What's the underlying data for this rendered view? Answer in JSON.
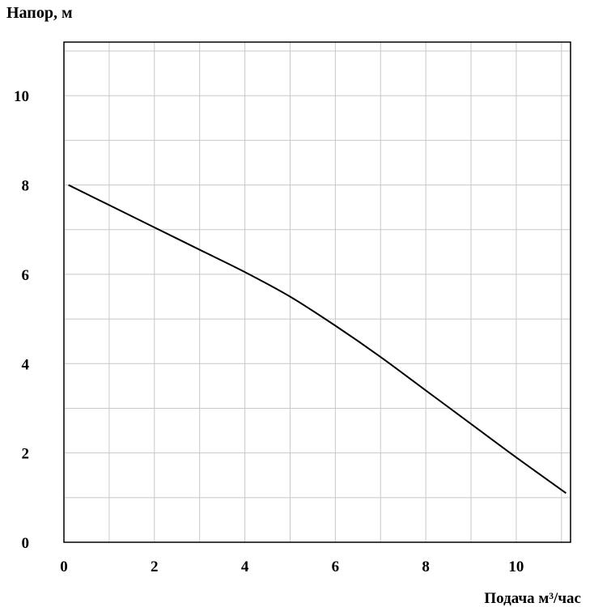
{
  "chart_data": {
    "type": "line",
    "title": "",
    "ylabel": "Напор, м",
    "xlabel": "Подача  м³/час",
    "xlim": [
      0,
      11.2
    ],
    "ylim": [
      0,
      11.2
    ],
    "x_ticks": [
      0,
      2,
      4,
      6,
      8,
      10
    ],
    "y_ticks": [
      0,
      2,
      4,
      6,
      8,
      10
    ],
    "x_tick_labels": [
      "0",
      "2",
      "4",
      "6",
      "8",
      "10"
    ],
    "y_tick_labels": [
      "0",
      "2",
      "4",
      "6",
      "8",
      "10"
    ],
    "grid": true,
    "grid_step": 1,
    "series": [
      {
        "x": [
          0.1,
          1,
          2,
          3,
          4,
          5,
          6,
          7,
          8,
          9,
          10,
          11.1
        ],
        "y": [
          8.0,
          7.55,
          7.05,
          6.55,
          6.05,
          5.5,
          4.85,
          4.15,
          3.4,
          2.65,
          1.9,
          1.1
        ]
      }
    ]
  },
  "colors": {
    "line": "#000000",
    "grid": "#c8c8c8",
    "axis": "#000000",
    "background": "#ffffff"
  }
}
